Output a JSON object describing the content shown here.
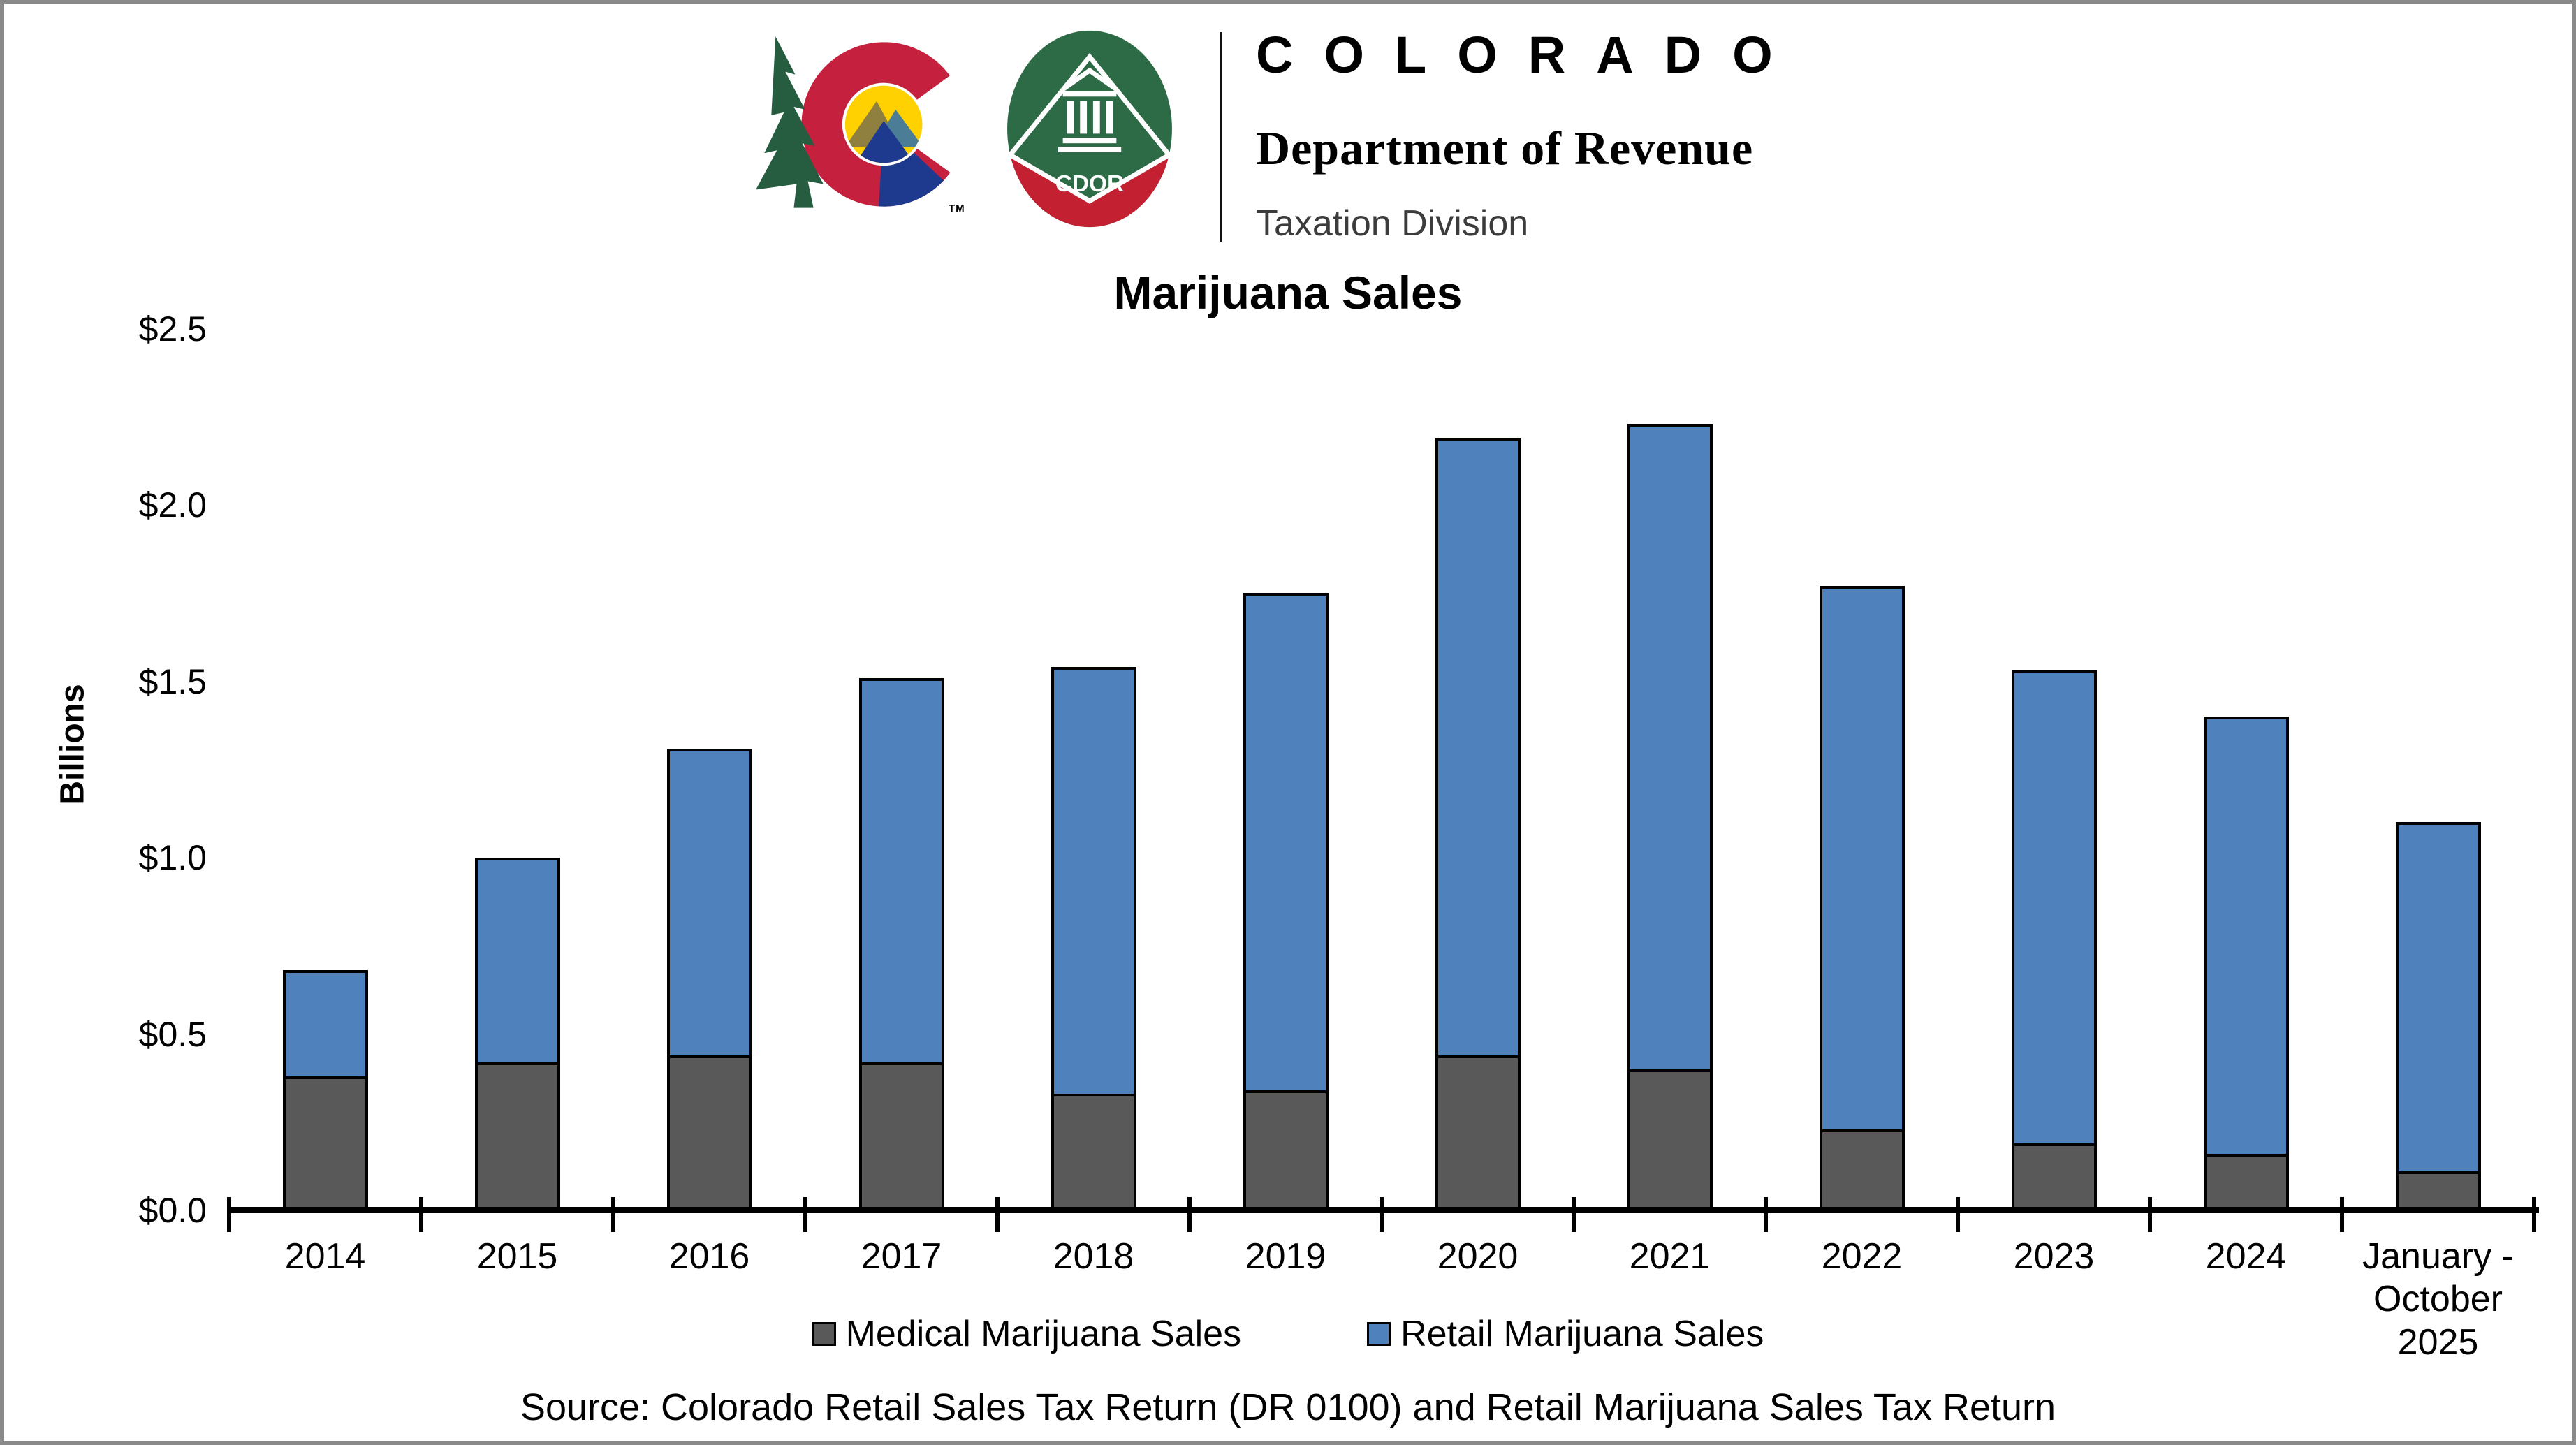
{
  "window": {
    "border_color": "#8a8a8a"
  },
  "header": {
    "brand_name": "COLORADO",
    "department": "Department of Revenue",
    "division": "Taxation Division",
    "logo_tm": "TM",
    "cdor_acronym": "CDOR"
  },
  "colors": {
    "retail_blue": "#4F81BD",
    "medical_gray": "#595959",
    "axis_black": "#000000",
    "logo_red": "#C5203E",
    "logo_green": "#2D6B46",
    "logo_yellow": "#FFD100",
    "logo_navy": "#1D3A8F"
  },
  "chart_data": {
    "type": "bar",
    "stacked": true,
    "title": "Marijuana Sales",
    "xlabel": "",
    "ylabel": "Billions",
    "ylim": [
      0,
      2.5
    ],
    "y_tick_values": [
      0,
      0.5,
      1.0,
      1.5,
      2.0,
      2.5
    ],
    "y_tick_labels": [
      "$0.0",
      "$0.5",
      "$1.0",
      "$1.5",
      "$2.0",
      "$2.5"
    ],
    "categories": [
      "2014",
      "2015",
      "2016",
      "2017",
      "2018",
      "2019",
      "2020",
      "2021",
      "2022",
      "2023",
      "2024",
      "January - October 2025"
    ],
    "series": [
      {
        "name": "Medical Marijuana Sales",
        "color": "#595959",
        "values": [
          0.38,
          0.42,
          0.44,
          0.42,
          0.33,
          0.34,
          0.44,
          0.4,
          0.23,
          0.19,
          0.16,
          0.11
        ]
      },
      {
        "name": "Retail Marijuana Sales",
        "color": "#4F81BD",
        "values": [
          0.3,
          0.58,
          0.87,
          1.09,
          1.21,
          1.41,
          1.75,
          1.83,
          1.54,
          1.34,
          1.24,
          0.99
        ]
      }
    ],
    "totals": [
      0.68,
      1.0,
      1.31,
      1.51,
      1.54,
      1.75,
      2.19,
      2.23,
      1.77,
      1.53,
      1.4,
      1.1
    ],
    "grid": false,
    "legend_position": "bottom",
    "source_note": "Source: Colorado Retail Sales Tax Return (DR 0100) and Retail Marijuana Sales Tax Return"
  }
}
